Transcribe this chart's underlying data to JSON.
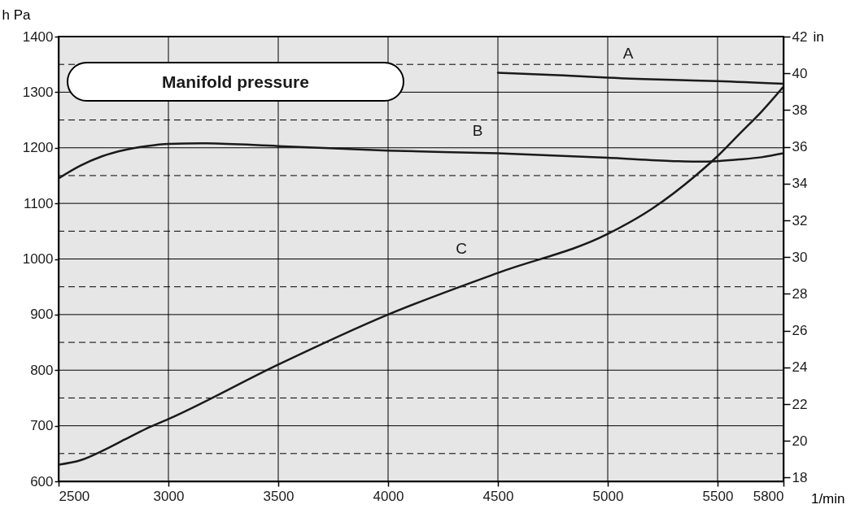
{
  "chart_data": {
    "type": "line",
    "title": "Manifold pressure",
    "ylabel": "h Pa",
    "y2label": "in",
    "xlabel": "1/min",
    "series": [
      {
        "name": "A",
        "color": "#1a1a1a",
        "x": [
          4500,
          4800,
          5000,
          5300,
          5500,
          5800
        ],
        "values": [
          1335,
          1330,
          1326,
          1322,
          1320,
          1315
        ]
      },
      {
        "name": "B",
        "color": "#1a1a1a",
        "x": [
          2500,
          2600,
          2700,
          2800,
          2900,
          3000,
          3150,
          3500,
          4000,
          4500,
          5000,
          5300,
          5400,
          5500,
          5600,
          5700,
          5800
        ],
        "values": [
          1145,
          1168,
          1185,
          1196,
          1203,
          1207,
          1208,
          1203,
          1195,
          1190,
          1182,
          1176,
          1175,
          1176,
          1179,
          1183,
          1190
        ]
      },
      {
        "name": "C",
        "color": "#1a1a1a",
        "x": [
          2500,
          2600,
          2700,
          2800,
          2900,
          3000,
          3500,
          4000,
          4500,
          5000,
          5200,
          5400,
          5500,
          5600,
          5700,
          5800
        ],
        "values": [
          630,
          638,
          655,
          675,
          695,
          712,
          810,
          900,
          975,
          1045,
          1090,
          1150,
          1185,
          1225,
          1265,
          1310
        ]
      }
    ],
    "xlim": [
      2500,
      5800
    ],
    "xticks": [
      2500,
      3000,
      3500,
      4000,
      4500,
      5000,
      5500,
      5800
    ],
    "ylim": [
      600,
      1400
    ],
    "yticks": [
      600,
      700,
      800,
      900,
      1000,
      1100,
      1200,
      1300,
      1400
    ],
    "y2lim": [
      17.8,
      42
    ],
    "y2ticks": [
      18,
      20,
      22,
      24,
      26,
      28,
      30,
      32,
      34,
      36,
      38,
      40,
      42
    ],
    "grid": true,
    "line_style": "solid",
    "marker": "none",
    "ref_lines": [
      {
        "axis": "y",
        "value": 650,
        "line_style": "dashed"
      },
      {
        "axis": "y",
        "value": 750,
        "line_style": "dashed"
      },
      {
        "axis": "y",
        "value": 850,
        "line_style": "dashed"
      },
      {
        "axis": "y",
        "value": 950,
        "line_style": "dashed"
      },
      {
        "axis": "y",
        "value": 1050,
        "line_style": "dashed"
      },
      {
        "axis": "y",
        "value": 1150,
        "line_style": "dashed"
      },
      {
        "axis": "y",
        "value": 1250,
        "line_style": "dashed"
      },
      {
        "axis": "y",
        "value": 1350,
        "line_style": "dashed"
      }
    ]
  }
}
